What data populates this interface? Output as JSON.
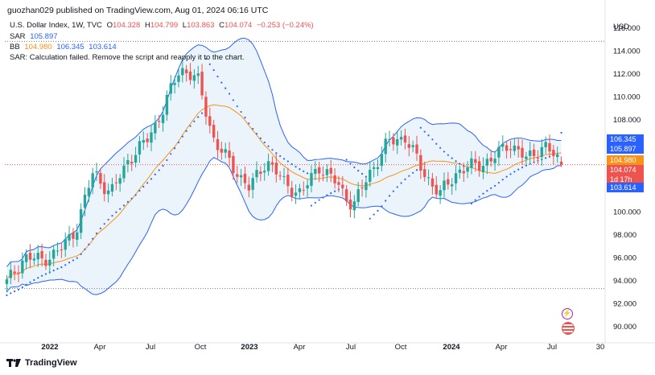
{
  "header": {
    "publisher_line": "guozhan029 published on TradingView.com, Aug 01, 2024 06:16 UTC"
  },
  "legend": {
    "symbol": "U.S. Dollar Index, 1W, TVC",
    "o_label": "O",
    "o_value": "104.328",
    "h_label": "H",
    "h_value": "104.799",
    "l_label": "L",
    "l_value": "103.863",
    "c_label": "C",
    "c_value": "104.074",
    "change": "−0.253 (−0.24%)",
    "sar_label": "SAR",
    "sar_value": "105.897",
    "bb_label": "BB",
    "bb_basis": "104.980",
    "bb_upper": "106.345",
    "bb_lower": "103.614",
    "error": "SAR: Calculation failed. Remove the script and reapply it to the chart."
  },
  "axis": {
    "currency": "USD",
    "y_ticks": [
      "116.000",
      "114.000",
      "112.000",
      "110.000",
      "108.000",
      "106.000",
      "104.000",
      "102.000",
      "100.000",
      "98.000",
      "96.000",
      "94.000",
      "92.000",
      "90.000"
    ],
    "x_ticks": [
      "2022",
      "Apr",
      "Jul",
      "Oct",
      "2023",
      "Apr",
      "Jul",
      "Oct",
      "2024",
      "Apr",
      "Jul",
      "30"
    ]
  },
  "price_tags": {
    "bb_upper": "106.345",
    "sar": "105.897",
    "bb_basis": "104.980",
    "close": "104.074",
    "countdown": "1d 17h",
    "bb_lower": "103.614"
  },
  "colors": {
    "up": "#26a69a",
    "down": "#ef5350",
    "bb_band": "#2962ff",
    "bb_basis": "#f7931a",
    "bb_fill": "#e3effa",
    "sar": "#2962ff",
    "close_line": "#ef5350"
  },
  "footer": {
    "brand": "TradingView"
  },
  "chart_data": {
    "type": "candlestick",
    "instrument": "U.S. Dollar Index",
    "timeframe": "1W",
    "ylim": [
      89,
      117
    ],
    "anchors": [
      {
        "x": "2021-11",
        "close": 93.8
      },
      {
        "x": "2021-12",
        "close": 96.0
      },
      {
        "x": "2022-01",
        "close": 95.8
      },
      {
        "x": "2022-02",
        "close": 96.5
      },
      {
        "x": "2022-03",
        "close": 98.5
      },
      {
        "x": "2022-04",
        "close": 103.5
      },
      {
        "x": "2022-05",
        "close": 101.5
      },
      {
        "x": "2022-06",
        "close": 104.5
      },
      {
        "x": "2022-07",
        "close": 106.0
      },
      {
        "x": "2022-08",
        "close": 108.8
      },
      {
        "x": "2022-09",
        "close": 112.5
      },
      {
        "x": "2022-10",
        "close": 111.5
      },
      {
        "x": "2022-11",
        "close": 106.0
      },
      {
        "x": "2022-12",
        "close": 104.0
      },
      {
        "x": "2023-01",
        "close": 102.0
      },
      {
        "x": "2023-02",
        "close": 104.5
      },
      {
        "x": "2023-03",
        "close": 102.5
      },
      {
        "x": "2023-04",
        "close": 101.5
      },
      {
        "x": "2023-05",
        "close": 104.0
      },
      {
        "x": "2023-06",
        "close": 102.5
      },
      {
        "x": "2023-07",
        "close": 100.5
      },
      {
        "x": "2023-08",
        "close": 103.5
      },
      {
        "x": "2023-09",
        "close": 106.0
      },
      {
        "x": "2023-10",
        "close": 106.5
      },
      {
        "x": "2023-11",
        "close": 103.5
      },
      {
        "x": "2023-12",
        "close": 101.5
      },
      {
        "x": "2024-01",
        "close": 103.5
      },
      {
        "x": "2024-02",
        "close": 104.0
      },
      {
        "x": "2024-03",
        "close": 104.5
      },
      {
        "x": "2024-04",
        "close": 106.0
      },
      {
        "x": "2024-05",
        "close": 104.5
      },
      {
        "x": "2024-06",
        "close": 105.8
      },
      {
        "x": "2024-07",
        "close": 104.1
      }
    ],
    "last": {
      "open": 104.328,
      "high": 104.799,
      "low": 103.863,
      "close": 104.074
    },
    "bollinger": {
      "basis": 104.98,
      "upper": 106.345,
      "lower": 103.614
    },
    "sar": 105.897,
    "reference_lines": [
      114.8,
      93.3
    ]
  }
}
